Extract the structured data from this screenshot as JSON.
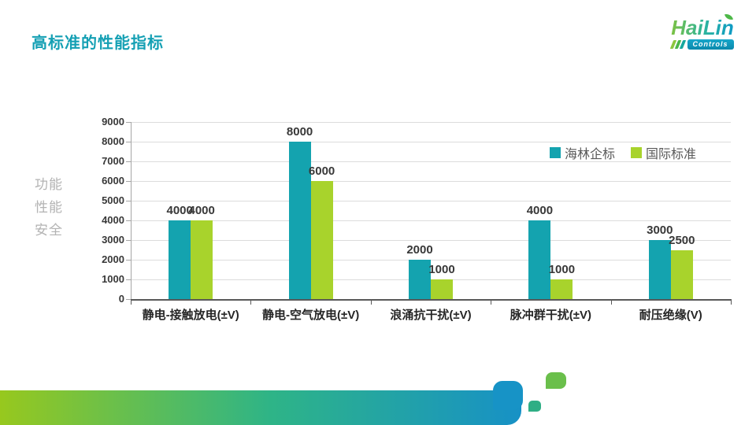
{
  "slide": {
    "title": "高标准的性能指标"
  },
  "logo": {
    "word": "HaiLin",
    "sub": "Controls"
  },
  "side_label": {
    "lines": [
      "功能",
      "性能",
      "安全"
    ]
  },
  "chart_data": {
    "type": "bar",
    "title": "",
    "xlabel": "",
    "ylabel": "",
    "categories": [
      "静电-接触放电(±V)",
      "静电-空气放电(±V)",
      "浪涌抗干扰(±V)",
      "脉冲群干扰(±V)",
      "耐压绝缘(V)"
    ],
    "series": [
      {
        "name": "海林企标",
        "color": "#14a3af",
        "values": [
          4000,
          8000,
          2000,
          4000,
          3000
        ]
      },
      {
        "name": "国际标准",
        "color": "#a8d32c",
        "values": [
          4000,
          6000,
          1000,
          1000,
          2500
        ]
      }
    ],
    "ylim": [
      0,
      9000
    ],
    "ytick_step": 1000,
    "grid": true,
    "legend_position": "top-right",
    "data_labels": true
  },
  "colors": {
    "title": "#15a0b4",
    "axis_text": "#383838",
    "category_text": "#262626",
    "legend_text": "#595959",
    "side_text": "#b3b3b3",
    "gridline": "#dcdcdc",
    "x_axis_line": "#595959",
    "y_axis_line": "#a6a6a6",
    "band_left": "#97c81e",
    "band_mid": "#2eb487",
    "band_right": "#1791c6",
    "deco_square_big": "#1793c6",
    "deco_leaf": "#6abf4b",
    "deco_square_small": "#2fae85",
    "logo_green": "#7cc242",
    "logo_blue": "#0e9ac6",
    "logo_stripe1": "#8dc63f",
    "logo_stripe2": "#4cb648",
    "logo_stripe3": "#16a89e"
  }
}
